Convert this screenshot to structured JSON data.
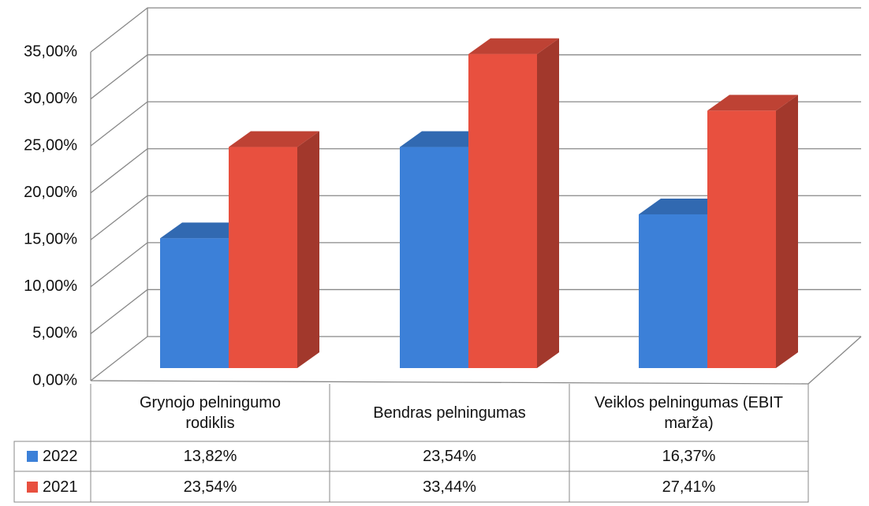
{
  "chart_data": {
    "type": "bar3d",
    "categories": [
      "Grynojo pelningumo rodiklis",
      "Bendras pelningumas",
      "Veiklos pelningumas (EBIT marža)"
    ],
    "series": [
      {
        "name": "2022",
        "color": "#3c80d8",
        "values": [
          13.82,
          23.54,
          16.37
        ],
        "value_labels": [
          "13,82%",
          "23,54%",
          "16,37%"
        ]
      },
      {
        "name": "2021",
        "color": "#e8503f",
        "values": [
          23.54,
          33.44,
          27.41
        ],
        "value_labels": [
          "23,54%",
          "33,44%",
          "27,41%"
        ]
      }
    ],
    "ylim": [
      0,
      35
    ],
    "yticks": [
      {
        "value": 0,
        "label": "0,00%"
      },
      {
        "value": 5,
        "label": "5,00%"
      },
      {
        "value": 10,
        "label": "10,00%"
      },
      {
        "value": 15,
        "label": "15,00%"
      },
      {
        "value": 20,
        "label": "20,00%"
      },
      {
        "value": 25,
        "label": "25,00%"
      },
      {
        "value": 30,
        "label": "30,00%"
      },
      {
        "value": 35,
        "label": "35,00%"
      }
    ],
    "grid": true
  }
}
